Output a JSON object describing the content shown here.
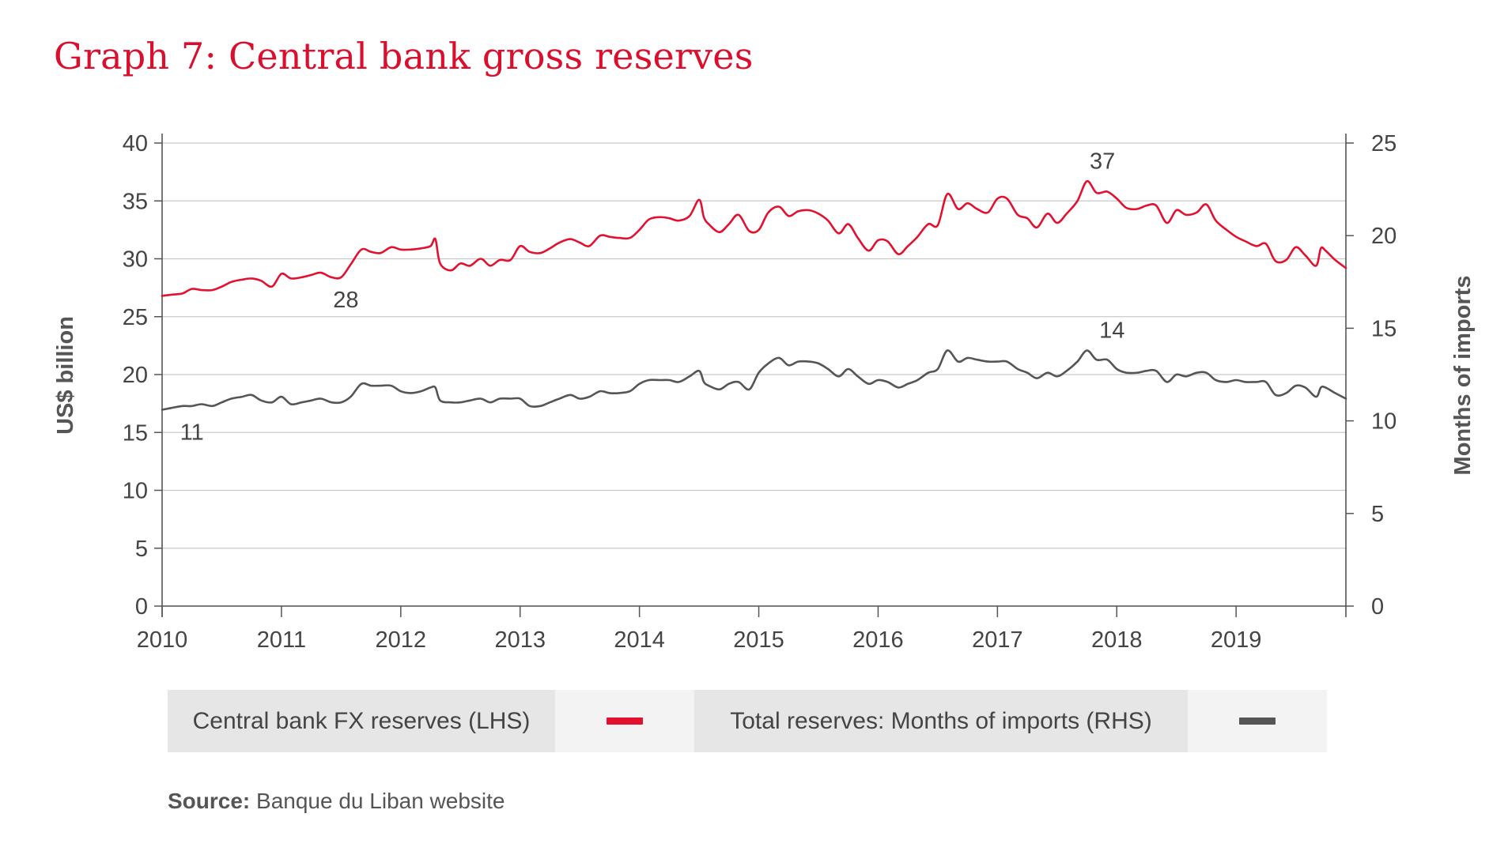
{
  "title": "Graph 7: Central bank gross reserves",
  "source": {
    "label": "Source:",
    "text": "Banque du Liban website"
  },
  "legend": [
    {
      "label": "Central bank FX reserves (LHS)",
      "color": "#e2112f"
    },
    {
      "label": "Total reserves: Months of imports (RHS)",
      "color": "#555555"
    }
  ],
  "chart_data": {
    "type": "line",
    "x_unit": "year (decimal)",
    "xlim": [
      2010.0,
      2019.92
    ],
    "x_ticks": [
      "2010",
      "2011",
      "2012",
      "2013",
      "2014",
      "2015",
      "2016",
      "2017",
      "2018",
      "2019"
    ],
    "y_left": {
      "label": "US$ billion",
      "lim": [
        0,
        40
      ],
      "ticks": [
        "0",
        "5",
        "10",
        "15",
        "20",
        "25",
        "30",
        "35",
        "40"
      ]
    },
    "y_right": {
      "label": "Months of imports",
      "lim": [
        0,
        25
      ],
      "ticks": [
        "0",
        "5",
        "10",
        "15",
        "20",
        "25"
      ]
    },
    "grid": true,
    "legend_position": "bottom",
    "series": [
      {
        "name": "Central bank FX reserves (LHS)",
        "axis": "left",
        "color": "#e2112f",
        "points": [
          [
            2010.0,
            26.8
          ],
          [
            2010.08,
            26.9
          ],
          [
            2010.17,
            27.0
          ],
          [
            2010.25,
            27.4
          ],
          [
            2010.33,
            27.3
          ],
          [
            2010.42,
            27.3
          ],
          [
            2010.5,
            27.6
          ],
          [
            2010.58,
            28.0
          ],
          [
            2010.67,
            28.2
          ],
          [
            2010.75,
            28.3
          ],
          [
            2010.83,
            28.1
          ],
          [
            2010.92,
            27.6
          ],
          [
            2011.0,
            28.7
          ],
          [
            2011.08,
            28.3
          ],
          [
            2011.17,
            28.4
          ],
          [
            2011.25,
            28.6
          ],
          [
            2011.33,
            28.8
          ],
          [
            2011.42,
            28.4
          ],
          [
            2011.5,
            28.4
          ],
          [
            2011.58,
            29.5
          ],
          [
            2011.67,
            30.8
          ],
          [
            2011.75,
            30.6
          ],
          [
            2011.83,
            30.5
          ],
          [
            2011.92,
            31.0
          ],
          [
            2012.0,
            30.8
          ],
          [
            2012.08,
            30.8
          ],
          [
            2012.17,
            30.9
          ],
          [
            2012.25,
            31.1
          ],
          [
            2012.29,
            31.7
          ],
          [
            2012.33,
            29.6
          ],
          [
            2012.42,
            29.0
          ],
          [
            2012.5,
            29.6
          ],
          [
            2012.58,
            29.4
          ],
          [
            2012.67,
            30.0
          ],
          [
            2012.75,
            29.4
          ],
          [
            2012.83,
            29.9
          ],
          [
            2012.92,
            29.9
          ],
          [
            2013.0,
            31.1
          ],
          [
            2013.08,
            30.6
          ],
          [
            2013.17,
            30.5
          ],
          [
            2013.25,
            30.9
          ],
          [
            2013.33,
            31.4
          ],
          [
            2013.42,
            31.7
          ],
          [
            2013.5,
            31.4
          ],
          [
            2013.58,
            31.1
          ],
          [
            2013.67,
            32.0
          ],
          [
            2013.75,
            31.9
          ],
          [
            2013.83,
            31.8
          ],
          [
            2013.92,
            31.8
          ],
          [
            2014.0,
            32.5
          ],
          [
            2014.08,
            33.4
          ],
          [
            2014.17,
            33.6
          ],
          [
            2014.25,
            33.5
          ],
          [
            2014.33,
            33.3
          ],
          [
            2014.42,
            33.7
          ],
          [
            2014.5,
            35.1
          ],
          [
            2014.54,
            33.6
          ],
          [
            2014.58,
            33.0
          ],
          [
            2014.67,
            32.3
          ],
          [
            2014.75,
            33.0
          ],
          [
            2014.83,
            33.8
          ],
          [
            2014.92,
            32.4
          ],
          [
            2015.0,
            32.5
          ],
          [
            2015.08,
            34.0
          ],
          [
            2015.17,
            34.5
          ],
          [
            2015.25,
            33.7
          ],
          [
            2015.33,
            34.1
          ],
          [
            2015.42,
            34.2
          ],
          [
            2015.5,
            33.9
          ],
          [
            2015.58,
            33.3
          ],
          [
            2015.67,
            32.2
          ],
          [
            2015.75,
            33.0
          ],
          [
            2015.83,
            31.8
          ],
          [
            2015.92,
            30.7
          ],
          [
            2016.0,
            31.6
          ],
          [
            2016.08,
            31.5
          ],
          [
            2016.17,
            30.4
          ],
          [
            2016.25,
            31.1
          ],
          [
            2016.33,
            31.9
          ],
          [
            2016.42,
            33.0
          ],
          [
            2016.5,
            32.9
          ],
          [
            2016.58,
            35.6
          ],
          [
            2016.67,
            34.3
          ],
          [
            2016.75,
            34.8
          ],
          [
            2016.83,
            34.3
          ],
          [
            2016.92,
            34.0
          ],
          [
            2017.0,
            35.2
          ],
          [
            2017.08,
            35.2
          ],
          [
            2017.17,
            33.8
          ],
          [
            2017.25,
            33.5
          ],
          [
            2017.33,
            32.7
          ],
          [
            2017.42,
            33.9
          ],
          [
            2017.5,
            33.1
          ],
          [
            2017.58,
            33.9
          ],
          [
            2017.67,
            35.0
          ],
          [
            2017.75,
            36.7
          ],
          [
            2017.83,
            35.7
          ],
          [
            2017.92,
            35.8
          ],
          [
            2018.0,
            35.2
          ],
          [
            2018.08,
            34.4
          ],
          [
            2018.17,
            34.3
          ],
          [
            2018.25,
            34.6
          ],
          [
            2018.33,
            34.6
          ],
          [
            2018.42,
            33.1
          ],
          [
            2018.5,
            34.2
          ],
          [
            2018.58,
            33.8
          ],
          [
            2018.67,
            34.0
          ],
          [
            2018.75,
            34.7
          ],
          [
            2018.83,
            33.3
          ],
          [
            2018.92,
            32.5
          ],
          [
            2019.0,
            31.9
          ],
          [
            2019.08,
            31.5
          ],
          [
            2019.17,
            31.1
          ],
          [
            2019.25,
            31.3
          ],
          [
            2019.33,
            29.8
          ],
          [
            2019.42,
            29.9
          ],
          [
            2019.5,
            31.0
          ],
          [
            2019.58,
            30.3
          ],
          [
            2019.67,
            29.4
          ],
          [
            2019.71,
            30.9
          ],
          [
            2019.75,
            30.7
          ],
          [
            2019.83,
            29.9
          ],
          [
            2019.92,
            29.2
          ]
        ],
        "annotations": [
          {
            "x": 2011.54,
            "y": 28.4,
            "label": "28"
          },
          {
            "x": 2017.88,
            "y": 36.7,
            "label": "37"
          }
        ]
      },
      {
        "name": "Total reserves: Months of imports (RHS)",
        "axis": "right",
        "color": "#555555",
        "points": [
          [
            2010.0,
            10.6
          ],
          [
            2010.08,
            10.7
          ],
          [
            2010.17,
            10.8
          ],
          [
            2010.25,
            10.8
          ],
          [
            2010.33,
            10.9
          ],
          [
            2010.42,
            10.8
          ],
          [
            2010.5,
            11.0
          ],
          [
            2010.58,
            11.2
          ],
          [
            2010.67,
            11.3
          ],
          [
            2010.75,
            11.4
          ],
          [
            2010.83,
            11.1
          ],
          [
            2010.92,
            11.0
          ],
          [
            2011.0,
            11.3
          ],
          [
            2011.08,
            10.9
          ],
          [
            2011.17,
            11.0
          ],
          [
            2011.25,
            11.1
          ],
          [
            2011.33,
            11.2
          ],
          [
            2011.42,
            11.0
          ],
          [
            2011.5,
            11.0
          ],
          [
            2011.58,
            11.3
          ],
          [
            2011.67,
            12.0
          ],
          [
            2011.75,
            11.9
          ],
          [
            2011.83,
            11.9
          ],
          [
            2011.92,
            11.9
          ],
          [
            2012.0,
            11.6
          ],
          [
            2012.08,
            11.5
          ],
          [
            2012.17,
            11.6
          ],
          [
            2012.25,
            11.8
          ],
          [
            2012.29,
            11.8
          ],
          [
            2012.33,
            11.1
          ],
          [
            2012.42,
            11.0
          ],
          [
            2012.5,
            11.0
          ],
          [
            2012.58,
            11.1
          ],
          [
            2012.67,
            11.2
          ],
          [
            2012.75,
            11.0
          ],
          [
            2012.83,
            11.2
          ],
          [
            2012.92,
            11.2
          ],
          [
            2013.0,
            11.2
          ],
          [
            2013.08,
            10.8
          ],
          [
            2013.17,
            10.8
          ],
          [
            2013.25,
            11.0
          ],
          [
            2013.33,
            11.2
          ],
          [
            2013.42,
            11.4
          ],
          [
            2013.5,
            11.2
          ],
          [
            2013.58,
            11.3
          ],
          [
            2013.67,
            11.6
          ],
          [
            2013.75,
            11.5
          ],
          [
            2013.83,
            11.5
          ],
          [
            2013.92,
            11.6
          ],
          [
            2014.0,
            12.0
          ],
          [
            2014.08,
            12.2
          ],
          [
            2014.17,
            12.2
          ],
          [
            2014.25,
            12.2
          ],
          [
            2014.33,
            12.1
          ],
          [
            2014.42,
            12.4
          ],
          [
            2014.5,
            12.7
          ],
          [
            2014.54,
            12.1
          ],
          [
            2014.58,
            11.9
          ],
          [
            2014.67,
            11.7
          ],
          [
            2014.75,
            12.0
          ],
          [
            2014.83,
            12.1
          ],
          [
            2014.92,
            11.7
          ],
          [
            2015.0,
            12.6
          ],
          [
            2015.08,
            13.1
          ],
          [
            2015.17,
            13.4
          ],
          [
            2015.25,
            13.0
          ],
          [
            2015.33,
            13.2
          ],
          [
            2015.42,
            13.2
          ],
          [
            2015.5,
            13.1
          ],
          [
            2015.58,
            12.8
          ],
          [
            2015.67,
            12.4
          ],
          [
            2015.75,
            12.8
          ],
          [
            2015.83,
            12.4
          ],
          [
            2015.92,
            12.0
          ],
          [
            2016.0,
            12.2
          ],
          [
            2016.08,
            12.1
          ],
          [
            2016.17,
            11.8
          ],
          [
            2016.25,
            12.0
          ],
          [
            2016.33,
            12.2
          ],
          [
            2016.42,
            12.6
          ],
          [
            2016.5,
            12.8
          ],
          [
            2016.58,
            13.8
          ],
          [
            2016.67,
            13.2
          ],
          [
            2016.75,
            13.4
          ],
          [
            2016.83,
            13.3
          ],
          [
            2016.92,
            13.2
          ],
          [
            2017.0,
            13.2
          ],
          [
            2017.08,
            13.2
          ],
          [
            2017.17,
            12.8
          ],
          [
            2017.25,
            12.6
          ],
          [
            2017.33,
            12.3
          ],
          [
            2017.42,
            12.6
          ],
          [
            2017.5,
            12.4
          ],
          [
            2017.58,
            12.7
          ],
          [
            2017.67,
            13.2
          ],
          [
            2017.75,
            13.8
          ],
          [
            2017.83,
            13.3
          ],
          [
            2017.92,
            13.3
          ],
          [
            2018.0,
            12.8
          ],
          [
            2018.08,
            12.6
          ],
          [
            2018.17,
            12.6
          ],
          [
            2018.25,
            12.7
          ],
          [
            2018.33,
            12.7
          ],
          [
            2018.42,
            12.1
          ],
          [
            2018.5,
            12.5
          ],
          [
            2018.58,
            12.4
          ],
          [
            2018.67,
            12.6
          ],
          [
            2018.75,
            12.6
          ],
          [
            2018.83,
            12.2
          ],
          [
            2018.92,
            12.1
          ],
          [
            2019.0,
            12.2
          ],
          [
            2019.08,
            12.1
          ],
          [
            2019.17,
            12.1
          ],
          [
            2019.25,
            12.1
          ],
          [
            2019.33,
            11.4
          ],
          [
            2019.42,
            11.5
          ],
          [
            2019.5,
            11.9
          ],
          [
            2019.58,
            11.8
          ],
          [
            2019.67,
            11.3
          ],
          [
            2019.71,
            11.8
          ],
          [
            2019.75,
            11.8
          ],
          [
            2019.83,
            11.5
          ],
          [
            2019.92,
            11.2
          ]
        ],
        "annotations": [
          {
            "x": 2010.25,
            "y": 10.6,
            "label": "11"
          },
          {
            "x": 2017.96,
            "y": 13.8,
            "label": "14"
          }
        ]
      }
    ]
  }
}
